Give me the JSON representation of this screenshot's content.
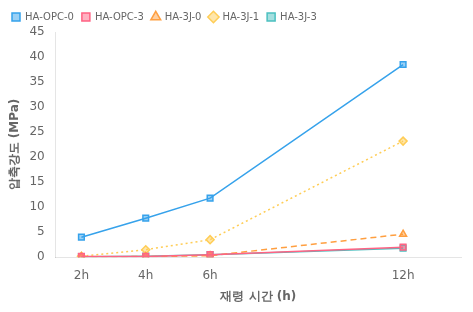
{
  "chart_data": {
    "type": "line",
    "x": [
      2,
      4,
      6,
      12
    ],
    "xlim": [
      1.2,
      13.8
    ],
    "xticks": [
      {
        "value": 2,
        "label": "2h"
      },
      {
        "value": 4,
        "label": "4h"
      },
      {
        "value": 6,
        "label": "6h"
      },
      {
        "value": 12,
        "label": "12h"
      }
    ],
    "ylim": [
      0,
      45
    ],
    "yticks": [
      0,
      5,
      10,
      15,
      20,
      25,
      30,
      35,
      40,
      45
    ],
    "xlabel": "재령 시간 (h)",
    "ylabel": "압축강도 (MPa)",
    "grid": false,
    "legend": "upper left",
    "series": [
      {
        "name": "HA-OPC-0",
        "values": [
          4.0,
          7.8,
          11.8,
          38.5
        ],
        "marker": "square",
        "line_style": "solid"
      },
      {
        "name": "HA-OPC-3",
        "values": [
          0.15,
          0.15,
          0.5,
          2.0
        ],
        "marker": "square",
        "line_style": "solid"
      },
      {
        "name": "HA-3J-0",
        "values": [
          0.1,
          0.12,
          0.3,
          4.6
        ],
        "marker": "triangle",
        "line_style": "dashed"
      },
      {
        "name": "HA-3J-1",
        "values": [
          0.2,
          1.5,
          3.5,
          23.2
        ],
        "marker": "diamond",
        "line_style": "dotted"
      },
      {
        "name": "HA-3J-3",
        "values": [
          0.1,
          0.2,
          0.5,
          1.8
        ],
        "marker": "square",
        "line_style": "solid"
      }
    ]
  }
}
